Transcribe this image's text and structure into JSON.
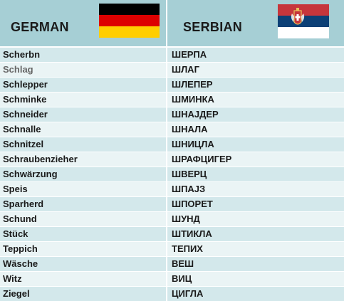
{
  "header": {
    "left_title": "GERMAN",
    "right_title": "SERBIAN",
    "left_flag_icon": "germany-flag-icon",
    "right_flag_icon": "serbia-flag-icon"
  },
  "colors": {
    "header_bg": "#a6cfd5",
    "row_odd": "#d3e8eb",
    "row_even": "#eaf4f5"
  },
  "rows": [
    {
      "german": "Scherbn",
      "serbian": "ШЕРПА"
    },
    {
      "german": "Schlag",
      "serbian": "ШЛАГ"
    },
    {
      "german": "Schlepper",
      "serbian": "ШЛЕПЕР"
    },
    {
      "german": "Schminke",
      "serbian": "ШМИНКА"
    },
    {
      "german": "Schneider",
      "serbian": "ШНАЈДЕР"
    },
    {
      "german": "Schnalle",
      "serbian": "ШНАЛА"
    },
    {
      "german": "Schnitzel",
      "serbian": "ШНИЦЛА"
    },
    {
      "german": "Schraubenzieher",
      "serbian": "ШРАФЦИГЕР"
    },
    {
      "german": "Schwärzung",
      "serbian": "ШВЕРЦ"
    },
    {
      "german": "Speis",
      "serbian": "ШПАЈЗ"
    },
    {
      "german": "Sparherd",
      "serbian": "ШПОРЕТ"
    },
    {
      "german": "Schund",
      "serbian": "ШУНД"
    },
    {
      "german": "Stück",
      "serbian": "ШТИКЛА"
    },
    {
      "german": "Teppich",
      "serbian": "ТЕПИХ"
    },
    {
      "german": "Wäsche",
      "serbian": "ВЕШ"
    },
    {
      "german": "Witz",
      "serbian": "ВИЦ"
    },
    {
      "german": "Ziegel",
      "serbian": "ЦИГЛА"
    }
  ]
}
